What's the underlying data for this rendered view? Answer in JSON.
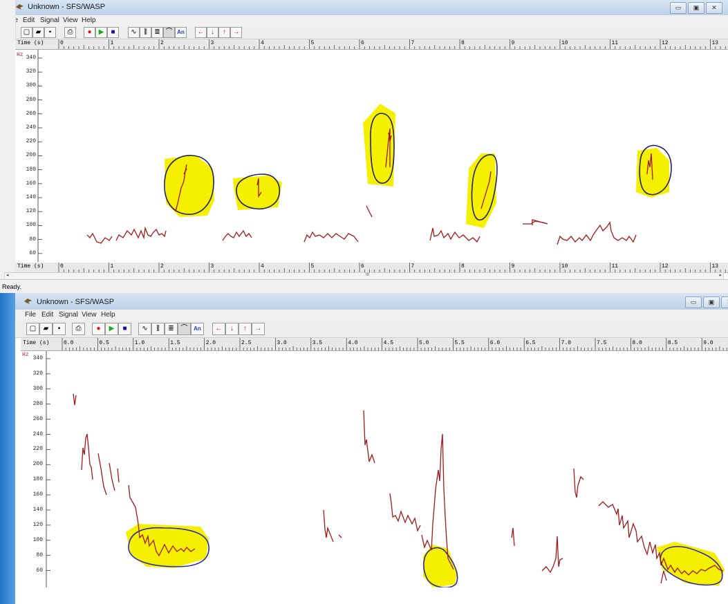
{
  "window1": {
    "title": "Unknown - SFS/WASP",
    "menu": [
      "File",
      "Edit",
      "Signal",
      "View",
      "Help"
    ],
    "time_label": "Time (s)",
    "time_ticks": [
      "0",
      "1",
      "2",
      "3",
      "4",
      "5",
      "6",
      "7",
      "8",
      "9",
      "10",
      "11",
      "12",
      "13"
    ],
    "unit": "Hz",
    "y_ticks": [
      "340",
      "320",
      "300",
      "280",
      "260",
      "240",
      "220",
      "200",
      "180",
      "160",
      "140",
      "120",
      "100",
      "80",
      "60"
    ],
    "status": "Ready.",
    "scroll_mid": "III"
  },
  "window2": {
    "title": "Unknown - SFS/WASP",
    "menu": [
      "File",
      "Edit",
      "Signal",
      "View",
      "Help"
    ],
    "time_label": "Time (s)",
    "time_ticks": [
      "0.0",
      "0.5",
      "1.0",
      "1.5",
      "2.0",
      "2.5",
      "3.0",
      "3.5",
      "4.0",
      "4.5",
      "5.0",
      "5.5",
      "6.0",
      "6.5",
      "7.0",
      "7.5",
      "8.0",
      "8.5",
      "9.0"
    ],
    "unit": "Hz",
    "y_ticks": [
      "340",
      "320",
      "300",
      "280",
      "260",
      "240",
      "220",
      "200",
      "180",
      "160",
      "140",
      "120",
      "100",
      "80",
      "60"
    ],
    "scroll_mid": "III"
  },
  "toolbar": {
    "buttons": [
      "new-icon",
      "open-icon",
      "save-icon",
      "print-icon",
      "record-icon",
      "play-icon",
      "stop-icon",
      "waveform-icon",
      "spectrogram-icon",
      "lines-icon",
      "pitch-icon",
      "annotate-icon",
      "arrow-left-icon",
      "arrow-down-icon",
      "arrow-up-icon",
      "arrow-right-icon"
    ],
    "an_label": "An"
  },
  "colors": {
    "pitch_track": "#a01818",
    "highlight": "#f5f000",
    "circle": "#202060",
    "circle2": "#2a2ab0",
    "record": "#dd1111",
    "play": "#11aa11",
    "stop": "#1111aa",
    "arrow": "#cc1111"
  }
}
